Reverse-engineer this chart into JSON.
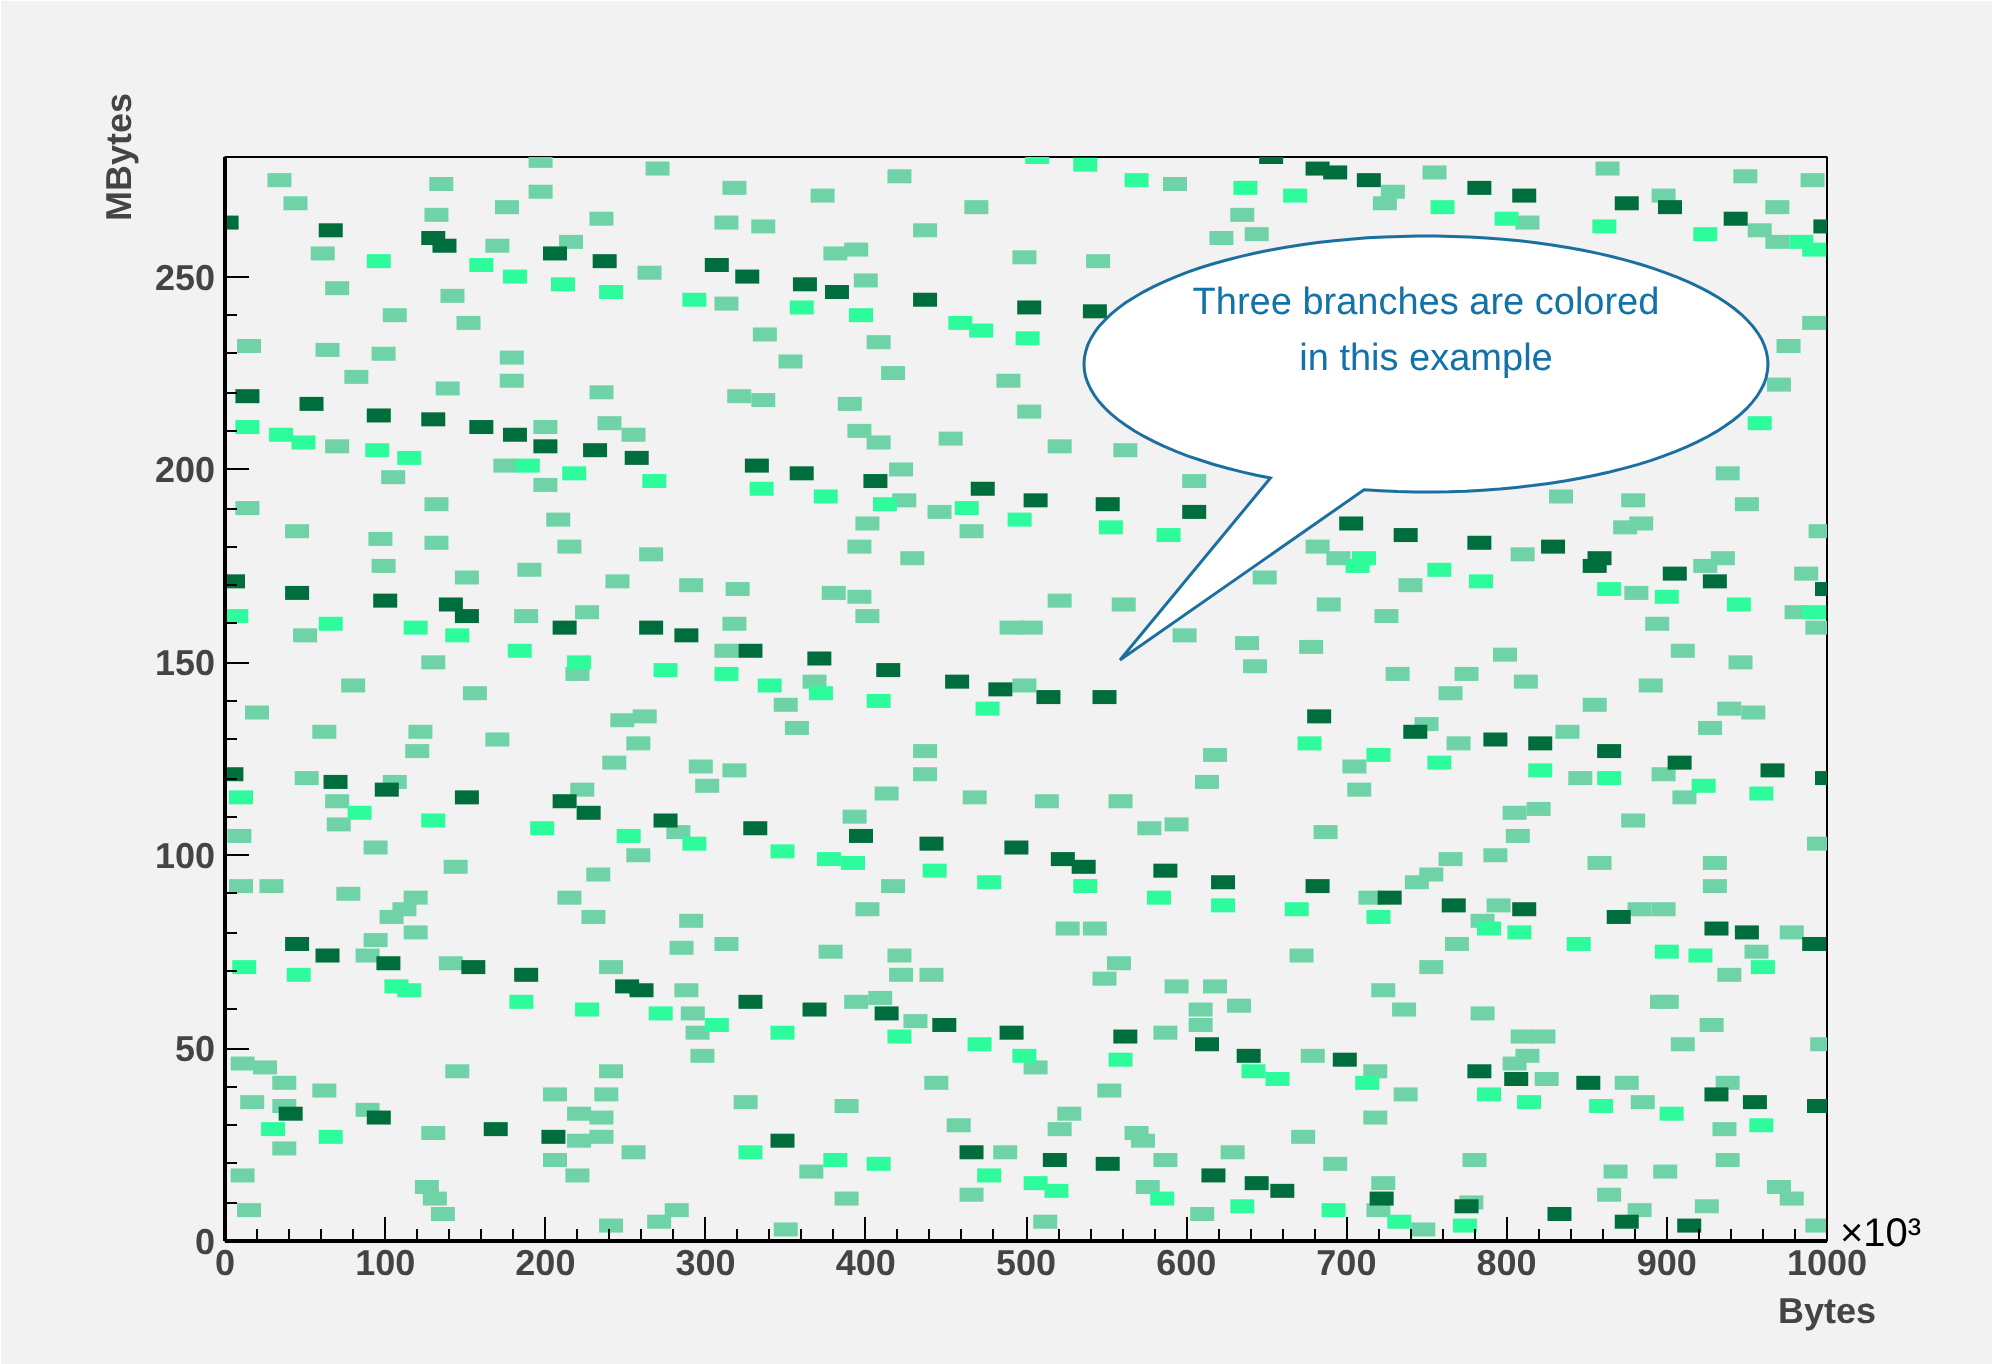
{
  "chart_data": {
    "type": "scatter",
    "xlabel": "Bytes",
    "ylabel": "MBytes",
    "marker": "square",
    "grid": false,
    "xlim": [
      0,
      1000
    ],
    "ylim": [
      0,
      281
    ],
    "xticks": [
      0,
      100,
      200,
      300,
      400,
      500,
      600,
      700,
      800,
      900,
      1000
    ],
    "yticks": [
      0,
      50,
      100,
      150,
      200,
      250
    ],
    "annotations": [
      "Three branches are colored\nin this example",
      "×10³"
    ],
    "series": [
      {
        "color": "#6fd3a7",
        "x": [
          34,
          44,
          135,
          132,
          176,
          197,
          197,
          235,
          270,
          318,
          313,
          61,
          70,
          142,
          106,
          152,
          170,
          216,
          265,
          313,
          15,
          64,
          99,
          179,
          82,
          139,
          179,
          235,
          321,
          240,
          255,
          200,
          70,
          105,
          175,
          200,
          132,
          14,
          45,
          97,
          132,
          208,
          215,
          266,
          99,
          151,
          190,
          245,
          291,
          320,
          188,
          226,
          318,
          50,
          130,
          80,
          156,
          20,
          220,
          313,
          421,
          373,
          469,
          336,
          437,
          381,
          394,
          400,
          499,
          545,
          593,
          622,
          644,
          635,
          337,
          408,
          353,
          417,
          489,
          390,
          336,
          502,
          396,
          408,
          453,
          521,
          562,
          422,
          424,
          446,
          466,
          401,
          396,
          429,
          605,
          380,
          396,
          401,
          491,
          503,
          521,
          561,
          599,
          638,
          643,
          649,
          350,
          368,
          499,
          755,
          863,
          949,
          991,
          729,
          724,
          813,
          898,
          958,
          969,
          969,
          992,
          976,
          970,
          938,
          950,
          879,
          834,
          884,
          874,
          996,
          682,
          695,
          810,
          924,
          935,
          740,
          881,
          689,
          987,
          981,
          994,
          725,
          894,
          678,
          799,
          910,
          946,
          732,
          775,
          812,
          890,
          765,
          855,
          939,
          954,
          62,
          122,
          120,
          170,
          51,
          106,
          70,
          71,
          9,
          94,
          29,
          10,
          77,
          104,
          112,
          119,
          119,
          94,
          89,
          144,
          248,
          262,
          258,
          243,
          223,
          233,
          215,
          230,
          297,
          301,
          318,
          258,
          283,
          291,
          285,
          313,
          141,
          241,
          288,
          292,
          295,
          298,
          11,
          25,
          37,
          62,
          145,
          17,
          37,
          37,
          130,
          89,
          241,
          238,
          206,
          221,
          235,
          235,
          221,
          206,
          220,
          255,
          11,
          15,
          126,
          131,
          136,
          241,
          271,
          282,
          325,
          357,
          437,
          437,
          413,
          468,
          513,
          559,
          577,
          594,
          618,
          613,
          393,
          417,
          401,
          526,
          543,
          378,
          421,
          422,
          441,
          394,
          409,
          431,
          558,
          549,
          594,
          618,
          633,
          609,
          609,
          587,
          506,
          444,
          552,
          388,
          527,
          521,
          458,
          569,
          573,
          487,
          587,
          629,
          366,
          466,
          388,
          576,
          512,
          350,
          610,
          750,
          770,
          705,
          708,
          838,
          846,
          898,
          911,
          927,
          879,
          820,
          805,
          807,
          793,
          765,
          753,
          744,
          687,
          858,
          883,
          898,
          795,
          785,
          715,
          769,
          753,
          672,
          723,
          736,
          785,
          930,
          930,
          939,
          956,
          900,
          928,
          910,
          995,
          978,
          997,
          679,
          718,
          737,
          718,
          673,
          693,
          723,
          720,
          748,
          780,
          778,
          805,
          813,
          810,
          823,
          825,
          875,
          885,
          936,
          938,
          868,
          864,
          899,
          883,
          925,
          970,
          978,
          994,
          897,
          938
        ],
        "values": [
          275,
          269,
          274,
          266,
          268,
          272,
          280,
          265,
          278,
          273,
          264,
          256,
          247,
          245,
          240,
          238,
          258,
          259,
          251,
          243,
          232,
          231,
          230,
          229,
          224,
          221,
          223,
          220,
          219,
          212,
          209,
          211,
          206,
          198,
          201,
          196,
          191,
          190,
          184,
          182,
          181,
          187,
          180,
          178,
          175,
          172,
          174,
          171,
          170,
          169,
          162,
          163,
          160,
          157,
          150,
          144,
          142,
          137,
          147,
          153,
          276,
          271,
          268,
          263,
          262,
          256,
          257,
          249,
          255,
          254,
          274,
          260,
          261,
          266,
          235,
          233,
          228,
          225,
          223,
          217,
          218,
          215,
          210,
          207,
          208,
          206,
          205,
          200,
          192,
          189,
          184,
          186,
          180,
          177,
          197,
          168,
          167,
          162,
          159,
          159,
          166,
          165,
          157,
          155,
          149,
          172,
          139,
          145,
          144,
          277,
          278,
          276,
          275,
          272,
          269,
          264,
          271,
          262,
          268,
          259,
          238,
          232,
          222,
          199,
          191,
          192,
          193,
          186,
          185,
          184,
          180,
          177,
          178,
          175,
          177,
          170,
          168,
          165,
          173,
          163,
          159,
          162,
          160,
          154,
          152,
          153,
          150,
          147,
          147,
          145,
          144,
          142,
          139,
          138,
          137,
          132,
          132,
          127,
          130,
          120,
          119,
          114,
          108,
          105,
          102,
          92,
          92,
          90,
          84,
          86,
          89,
          80,
          78,
          74,
          97,
          135,
          136,
          129,
          124,
          117,
          95,
          89,
          84,
          123,
          118,
          122,
          100,
          106,
          83,
          76,
          77,
          72,
          71,
          65,
          59,
          54,
          48,
          46,
          45,
          41,
          39,
          44,
          36,
          35,
          24,
          28,
          34,
          44,
          38,
          38,
          33,
          32,
          27,
          26,
          21,
          17,
          23,
          17,
          8,
          14,
          11,
          7,
          4,
          5,
          8,
          36,
          133,
          127,
          121,
          116,
          115,
          114,
          114,
          107,
          108,
          126,
          119,
          110,
          92,
          86,
          81,
          81,
          75,
          74,
          69,
          69,
          62,
          63,
          57,
          72,
          68,
          66,
          66,
          61,
          60,
          56,
          54,
          45,
          41,
          39,
          35,
          33,
          29,
          30,
          28,
          26,
          23,
          21,
          23,
          18,
          12,
          11,
          14,
          5,
          3,
          7,
          134,
          129,
          123,
          117,
          132,
          120,
          121,
          115,
          133,
          109,
          112,
          111,
          105,
          100,
          99,
          95,
          93,
          106,
          98,
          86,
          86,
          87,
          83,
          89,
          77,
          71,
          74,
          65,
          60,
          59,
          92,
          98,
          69,
          75,
          62,
          56,
          51,
          103,
          80,
          51,
          48,
          44,
          38,
          32,
          27,
          20,
          15,
          8,
          3,
          21,
          10,
          46,
          48,
          53,
          53,
          42,
          41,
          36,
          29,
          21,
          18,
          12,
          18,
          8,
          9,
          14,
          11,
          4,
          62,
          41
        ]
      },
      {
        "color": "#2efc9c",
        "x": [
          96,
          160,
          181,
          211,
          241,
          293,
          14,
          35,
          49,
          95,
          115,
          189,
          218,
          268,
          7,
          66,
          119,
          145,
          184,
          221,
          275,
          313,
          360,
          397,
          459,
          472,
          501,
          507,
          537,
          569,
          637,
          668,
          335,
          375,
          412,
          463,
          496,
          553,
          589,
          340,
          372,
          408,
          476,
          760,
          800,
          861,
          924,
          984,
          992,
          958,
          707,
          711,
          758,
          784,
          864,
          900,
          945,
          992,
          10,
          84,
          130,
          198,
          252,
          293,
          12,
          46,
          107,
          115,
          185,
          226,
          272,
          307,
          30,
          66,
          328,
          348,
          377,
          392,
          443,
          477,
          537,
          583,
          623,
          348,
          421,
          471,
          499,
          559,
          642,
          657,
          381,
          408,
          477,
          506,
          519,
          585,
          635,
          677,
          720,
          758,
          821,
          864,
          923,
          959,
          669,
          720,
          789,
          808,
          845,
          900,
          921,
          960,
          713,
          789,
          814,
          859,
          903,
          959,
          692,
          733,
          774
        ],
        "values": [
          254,
          253,
          250,
          248,
          246,
          244,
          211,
          209,
          207,
          205,
          203,
          201,
          199,
          197,
          162,
          160,
          159,
          157,
          153,
          150,
          148,
          147,
          242,
          240,
          238,
          236,
          234,
          281,
          279,
          275,
          273,
          271,
          195,
          193,
          191,
          190,
          187,
          185,
          183,
          144,
          142,
          140,
          138,
          268,
          265,
          263,
          261,
          259,
          257,
          212,
          175,
          177,
          174,
          171,
          169,
          167,
          165,
          163,
          115,
          111,
          109,
          107,
          105,
          103,
          71,
          69,
          66,
          65,
          62,
          60,
          59,
          56,
          29,
          27,
          23,
          101,
          99,
          98,
          96,
          93,
          92,
          89,
          87,
          54,
          53,
          51,
          48,
          47,
          44,
          42,
          21,
          20,
          17,
          15,
          13,
          11,
          9,
          129,
          126,
          124,
          122,
          120,
          118,
          116,
          86,
          84,
          81,
          80,
          77,
          75,
          74,
          71,
          41,
          38,
          36,
          35,
          33,
          30,
          8,
          5,
          4
        ]
      },
      {
        "color": "#006e3c",
        "x": [
          653,
          682,
          693,
          714,
          783,
          811,
          875,
          902,
          943,
          999,
          1,
          66,
          130,
          137,
          206,
          237,
          307,
          326,
          362,
          382,
          437,
          502,
          543,
          14,
          54,
          96,
          130,
          160,
          181,
          200,
          231,
          257,
          332,
          360,
          406,
          473,
          506,
          551,
          605,
          703,
          737,
          783,
          829,
          858,
          855,
          905,
          930,
          1000,
          5,
          45,
          100,
          141,
          151,
          212,
          266,
          288,
          328,
          371,
          414,
          457,
          484,
          514,
          549,
          683,
          743,
          793,
          821,
          864,
          908,
          966,
          1000,
          4,
          69,
          101,
          151,
          212,
          227,
          275,
          331,
          397,
          441,
          494,
          523,
          536,
          587,
          623,
          682,
          727,
          767,
          811,
          870,
          931,
          950,
          992,
          45,
          64,
          102,
          155,
          188,
          251,
          260,
          328,
          368,
          413,
          449,
          491,
          562,
          613,
          639,
          699,
          783,
          806,
          851,
          931,
          955,
          995,
          41,
          96,
          169,
          205,
          348,
          466,
          518,
          551,
          617,
          644,
          660,
          722,
          775,
          833,
          875,
          914
        ],
        "values": [
          281,
          278,
          277,
          275,
          273,
          271,
          269,
          268,
          265,
          263,
          264,
          262,
          260,
          258,
          256,
          254,
          253,
          250,
          248,
          246,
          244,
          242,
          241,
          219,
          217,
          214,
          213,
          211,
          209,
          206,
          205,
          203,
          201,
          199,
          197,
          195,
          192,
          191,
          189,
          186,
          183,
          181,
          180,
          177,
          175,
          173,
          171,
          169,
          171,
          168,
          166,
          165,
          162,
          159,
          159,
          157,
          153,
          151,
          148,
          145,
          143,
          141,
          141,
          136,
          132,
          130,
          129,
          127,
          124,
          122,
          120,
          121,
          119,
          117,
          115,
          114,
          111,
          109,
          107,
          105,
          103,
          102,
          99,
          97,
          96,
          93,
          92,
          89,
          87,
          86,
          84,
          81,
          80,
          77,
          77,
          74,
          72,
          71,
          69,
          66,
          65,
          62,
          60,
          59,
          56,
          54,
          53,
          51,
          48,
          47,
          44,
          42,
          41,
          38,
          36,
          35,
          33,
          32,
          29,
          27,
          26,
          23,
          21,
          20,
          17,
          15,
          13,
          11,
          9,
          7,
          5,
          4
        ]
      }
    ]
  }
}
